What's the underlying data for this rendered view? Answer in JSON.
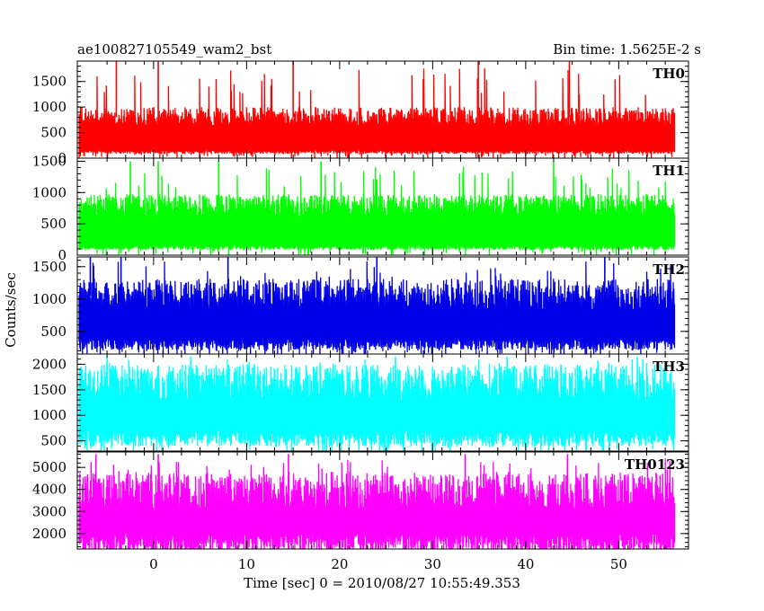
{
  "chart_data": {
    "type": "line",
    "title": "ae100827105549_wam2_bst",
    "subtitle": "Bin time: 1.5625E-2 s",
    "xlabel": "Time [sec] 0 = 2010/08/27 10:55:49.353",
    "ylabel": "Counts/sec",
    "xlim": [
      -8.2,
      57.5
    ],
    "x_ticks": [
      0,
      10,
      20,
      30,
      40,
      50
    ],
    "data_x_range": [
      -8.0,
      56.0
    ],
    "bin_time": 0.015625,
    "grid": false,
    "series": [
      {
        "name": "TH0",
        "color": "#ff0000",
        "ylim": [
          0,
          1900
        ],
        "yticks": [
          0,
          500,
          1000,
          1500
        ],
        "typical_range": [
          150,
          800
        ],
        "max_value": 1900,
        "spike_times": [
          0.5,
          -4.0,
          15.0,
          34.9,
          44.7
        ]
      },
      {
        "name": "TH1",
        "color": "#00ff00",
        "ylim": [
          0,
          1550
        ],
        "yticks": [
          0,
          500,
          1000,
          1500
        ],
        "typical_range": [
          150,
          780
        ],
        "max_value": 1500,
        "spike_times": [
          -2.5,
          0.5,
          7.0,
          18.0,
          43.0
        ]
      },
      {
        "name": "TH2",
        "color": "#0000e6",
        "ylim": [
          150,
          1650
        ],
        "yticks": [
          500,
          1000,
          1500
        ],
        "typical_range": [
          380,
          1050
        ],
        "max_value": 1650,
        "spike_times": [
          -6.8,
          -3.5,
          8.0,
          24.0,
          48.5
        ]
      },
      {
        "name": "TH3",
        "color": "#00ffff",
        "ylim": [
          300,
          2200
        ],
        "yticks": [
          500,
          1000,
          1500,
          2000
        ],
        "typical_range": [
          700,
          1600
        ],
        "max_value": 2150,
        "spike_times": [
          -5.0,
          4.0,
          26.0,
          38.0,
          52.0
        ]
      },
      {
        "name": "TH0123",
        "color": "#ff00ff",
        "ylim": [
          1300,
          5700
        ],
        "yticks": [
          2000,
          3000,
          4000,
          5000
        ],
        "typical_range": [
          2000,
          3800
        ],
        "max_value": 5600,
        "spike_times": [
          -6.2,
          0.5,
          14.5,
          33.5,
          44.5
        ]
      }
    ]
  }
}
